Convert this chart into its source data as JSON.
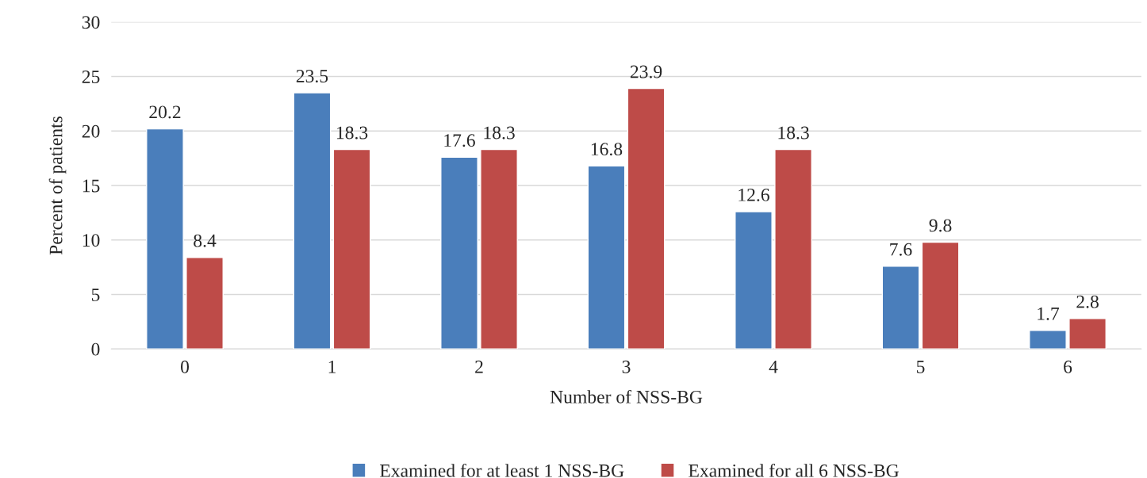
{
  "chart_data": {
    "type": "bar",
    "xlabel": "Number of NSS-BG",
    "ylabel": "Percent of patients",
    "categories": [
      "0",
      "1",
      "2",
      "3",
      "4",
      "5",
      "6"
    ],
    "series": [
      {
        "name": "Examined for at least 1 NSS-BG",
        "color": "#4a7ebb",
        "values": [
          20.2,
          23.5,
          17.6,
          16.8,
          12.6,
          7.6,
          1.7
        ]
      },
      {
        "name": "Examined for all 6 NSS-BG",
        "color": "#be4b48",
        "values": [
          8.4,
          18.3,
          18.3,
          23.9,
          18.3,
          9.8,
          2.8
        ]
      }
    ],
    "ylim": [
      0,
      30
    ],
    "yticks": [
      0,
      5,
      10,
      15,
      20,
      25,
      30
    ],
    "grid": "y",
    "legend": "bottom",
    "data_labels": true
  }
}
